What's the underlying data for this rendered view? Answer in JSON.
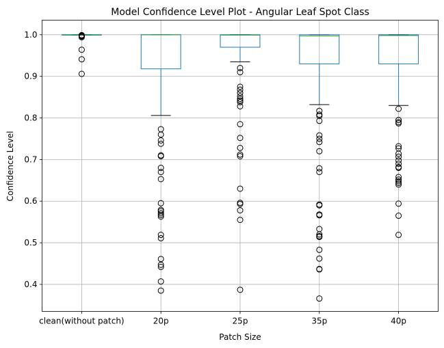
{
  "chart_data": {
    "type": "box",
    "title": "Model Confidence Level Plot - Angular Leaf Spot Class",
    "xlabel": "Patch Size",
    "ylabel": "Confidence Level",
    "ylim": [
      0.335,
      1.035
    ],
    "yticks": [
      "0.4",
      "0.5",
      "0.6",
      "0.7",
      "0.8",
      "0.9",
      "1.0"
    ],
    "grid": true,
    "colors": {
      "box": "#1f77b4",
      "median": "#2ca02c",
      "whisker": "#1f77b4",
      "cap": "#000000",
      "flier": "#000000",
      "grid": "#b0b0b0"
    },
    "categories": [
      "clean(without patch)",
      "20p",
      "25p",
      "35p",
      "40p"
    ],
    "boxes": [
      {
        "label": "clean(without patch)",
        "whisker_low": 0.999,
        "q1": 0.9995,
        "median": 1.0,
        "q3": 1.0,
        "whisker_high": 1.0,
        "fliers": [
          0.998,
          0.999,
          0.9985,
          0.997,
          0.996,
          0.994,
          0.964,
          0.941,
          0.906
        ]
      },
      {
        "label": "20p",
        "whisker_low": 0.806,
        "q1": 0.918,
        "median": 1.0,
        "q3": 1.0,
        "whisker_high": 1.0,
        "fliers": [
          0.773,
          0.76,
          0.746,
          0.738,
          0.71,
          0.708,
          0.68,
          0.67,
          0.653,
          0.595,
          0.579,
          0.576,
          0.571,
          0.567,
          0.563,
          0.519,
          0.511,
          0.461,
          0.447,
          0.442,
          0.407,
          0.385
        ]
      },
      {
        "label": "25p",
        "whisker_low": 0.935,
        "q1": 0.97,
        "median": 0.999,
        "q3": 1.0,
        "whisker_high": 1.0,
        "fliers": [
          0.92,
          0.91,
          0.875,
          0.868,
          0.86,
          0.852,
          0.846,
          0.842,
          0.838,
          0.828,
          0.785,
          0.752,
          0.728,
          0.712,
          0.708,
          0.63,
          0.596,
          0.593,
          0.578,
          0.555,
          0.387
        ]
      },
      {
        "label": "35p",
        "whisker_low": 0.832,
        "q1": 0.93,
        "median": 0.997,
        "q3": 1.0,
        "whisker_high": 1.0,
        "fliers": [
          0.817,
          0.808,
          0.805,
          0.793,
          0.758,
          0.75,
          0.742,
          0.72,
          0.679,
          0.67,
          0.592,
          0.59,
          0.568,
          0.566,
          0.533,
          0.52,
          0.516,
          0.514,
          0.483,
          0.462,
          0.437,
          0.436,
          0.366
        ]
      },
      {
        "label": "40p",
        "whisker_low": 0.83,
        "q1": 0.93,
        "median": 0.998,
        "q3": 1.0,
        "whisker_high": 1.0,
        "fliers": [
          0.822,
          0.795,
          0.79,
          0.787,
          0.732,
          0.727,
          0.714,
          0.707,
          0.698,
          0.69,
          0.682,
          0.68,
          0.658,
          0.652,
          0.648,
          0.644,
          0.64,
          0.594,
          0.565,
          0.519
        ]
      }
    ]
  }
}
